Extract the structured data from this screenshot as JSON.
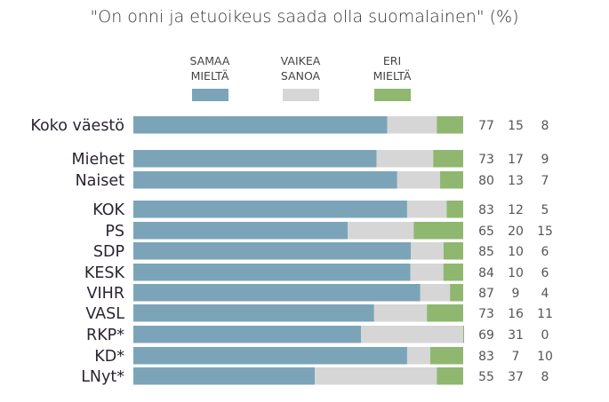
{
  "chart_data": {
    "type": "bar",
    "orientation": "horizontal",
    "stacked": true,
    "title": "\"On onni ja etuoikeus saada olla suomalainen\" (%)",
    "categories": [
      "Koko väestö",
      "Miehet",
      "Naiset",
      "KOK",
      "PS",
      "SDP",
      "KESK",
      "VIHR",
      "VASL",
      "RKP*",
      "KD*",
      "LNyt*"
    ],
    "groups": [
      [
        0
      ],
      [
        1,
        2
      ],
      [
        3,
        4,
        5,
        6,
        7,
        8,
        9,
        10,
        11
      ]
    ],
    "series": [
      {
        "name": "SAMAA MIELTÄ",
        "name_lines": [
          "SAMAA",
          "MIELTÄ"
        ],
        "color": "#7ba4b8",
        "values": [
          77,
          73,
          80,
          83,
          65,
          85,
          84,
          87,
          73,
          69,
          83,
          55
        ]
      },
      {
        "name": "VAIKEA SANOA",
        "name_lines": [
          "VAIKEA",
          "SANOA"
        ],
        "color": "#d6d6d6",
        "values": [
          15,
          17,
          13,
          12,
          20,
          10,
          10,
          9,
          16,
          31,
          7,
          37
        ]
      },
      {
        "name": "ERI MIELTÄ",
        "name_lines": [
          "ERI",
          "MIELTÄ"
        ],
        "color": "#8fb76f",
        "values": [
          8,
          9,
          7,
          5,
          15,
          6,
          6,
          4,
          11,
          0,
          10,
          8
        ]
      }
    ],
    "legend": "top",
    "grid": false,
    "xlim": [
      0,
      100
    ]
  }
}
